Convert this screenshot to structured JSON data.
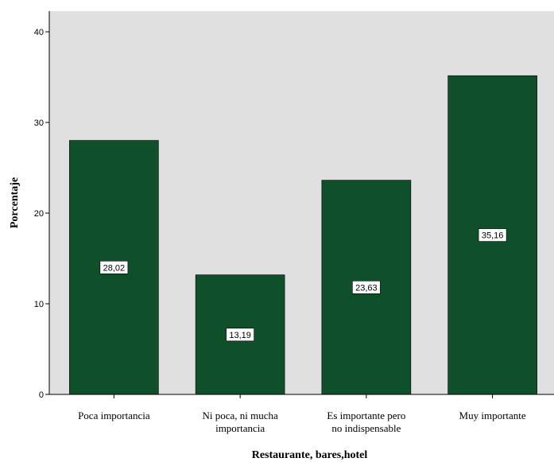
{
  "chart_data": {
    "type": "bar",
    "title": "",
    "xlabel": "Restaurante, bares,hotel",
    "ylabel": "Porcentaje",
    "categories": [
      [
        "Poca importancia"
      ],
      [
        "Ni poca, ni mucha",
        "importancia"
      ],
      [
        "Es importante pero",
        "no indispensable"
      ],
      [
        "Muy importante"
      ]
    ],
    "values": [
      28.02,
      13.19,
      23.63,
      35.16
    ],
    "data_labels": [
      "28,02",
      "13,19",
      "23,63",
      "35,16"
    ],
    "ylim": [
      0,
      40
    ],
    "yticks": [
      0,
      10,
      20,
      30,
      40
    ],
    "grid": false,
    "colors": {
      "bar": "#0f4f2a",
      "plot_background": "#e0e0e0",
      "axis": "#000000"
    }
  }
}
